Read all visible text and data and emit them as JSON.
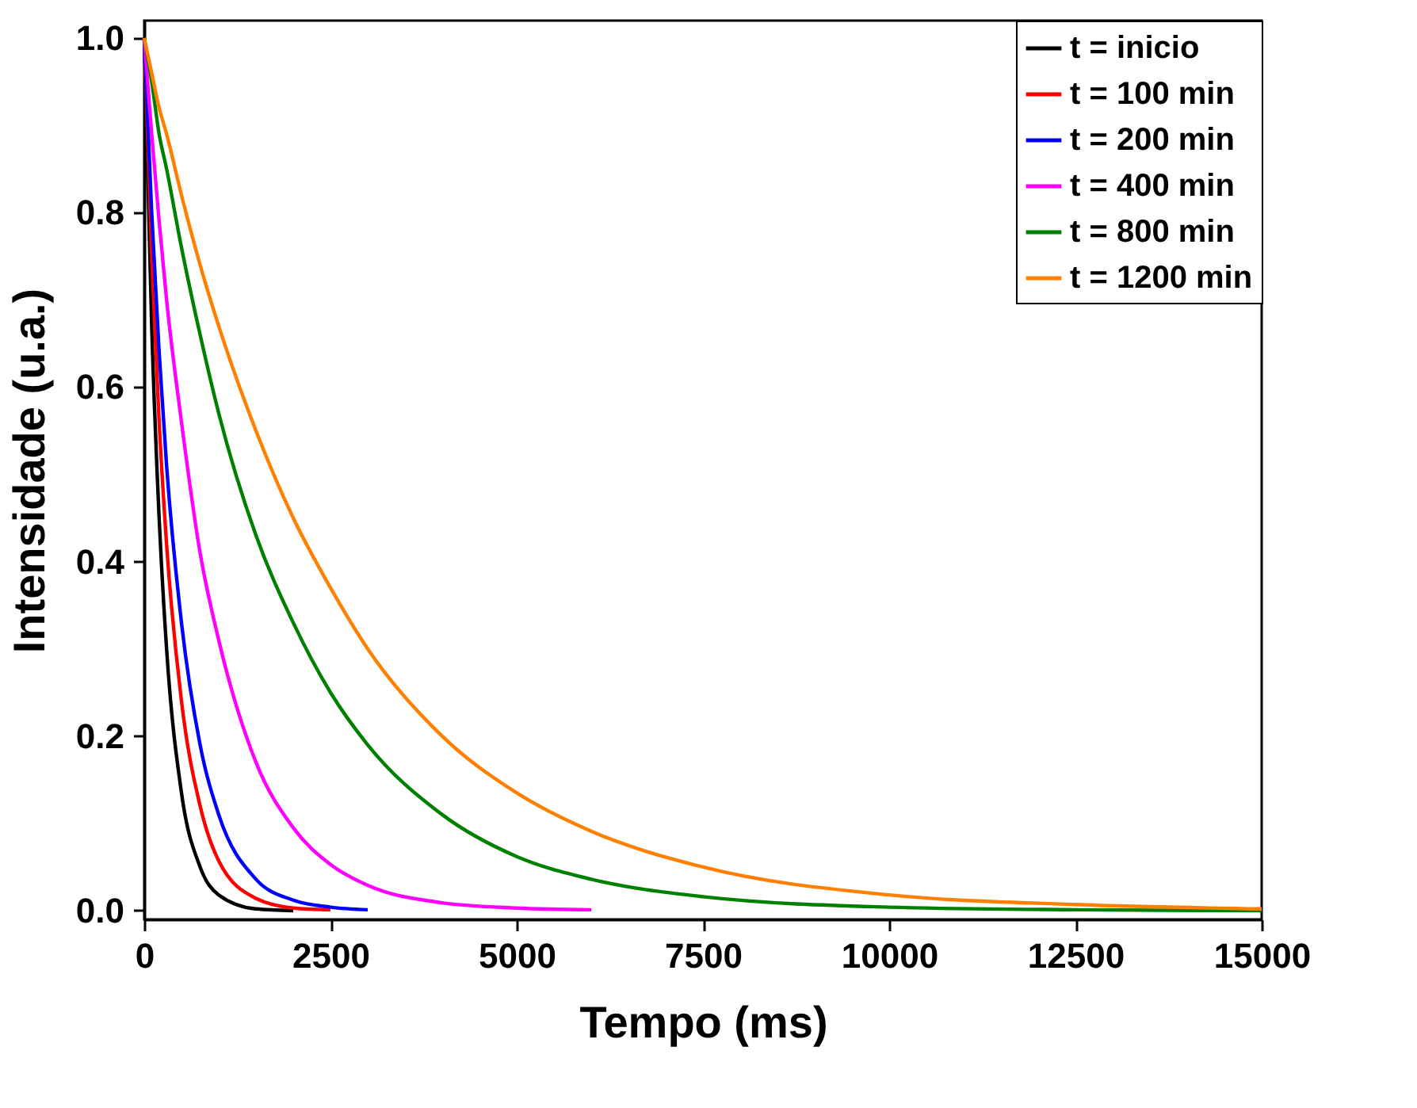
{
  "chart_data": {
    "type": "line",
    "xlabel": "Tempo (ms)",
    "ylabel": "Intensidade (u.a.)",
    "xlim": [
      0,
      15000
    ],
    "xticks": [
      0,
      2500,
      5000,
      7500,
      10000,
      12500,
      15000
    ],
    "ylim": [
      -0.01,
      1.02
    ],
    "yticks": [
      {
        "value": 0,
        "label": "0.0"
      },
      0.2,
      0.4,
      0.6,
      0.8,
      {
        "value": 1,
        "label": "1.0"
      }
    ],
    "grid": false,
    "legend": "top right",
    "marker": "none",
    "line_style": "solid",
    "x": [
      0,
      100,
      200,
      300,
      500,
      750,
      1000,
      1500,
      2000,
      2500,
      3000,
      4000,
      5000,
      6000,
      7500,
      10000,
      12500,
      15000
    ],
    "series": [
      {
        "name": "t = inicio",
        "color": "#000000",
        "x": [
          0,
          100,
          200,
          300,
          500,
          750,
          1000,
          1500,
          2000
        ],
        "values": [
          1,
          0.67,
          0.45,
          0.3,
          0.135,
          0.05,
          0.018,
          0.002,
          0
        ]
      },
      {
        "name": "t = 100 min",
        "color": "#ff0000",
        "x": [
          0,
          100,
          200,
          300,
          500,
          750,
          1000,
          1500,
          2000,
          2500
        ],
        "values": [
          1,
          0.75,
          0.56,
          0.42,
          0.24,
          0.12,
          0.057,
          0.014,
          0.003,
          0.001
        ]
      },
      {
        "name": "t = 200 min",
        "color": "#0000ff",
        "x": [
          0,
          100,
          200,
          300,
          500,
          750,
          1000,
          1500,
          2000,
          2500,
          3000
        ],
        "values": [
          1,
          0.8,
          0.64,
          0.51,
          0.33,
          0.19,
          0.11,
          0.036,
          0.012,
          0.004,
          0.001
        ]
      },
      {
        "name": "t = 400 min",
        "color": "#ff00ff",
        "x": [
          0,
          100,
          200,
          300,
          500,
          750,
          1000,
          1500,
          2000,
          2500,
          3000,
          4000,
          5000,
          6000
        ],
        "values": [
          1,
          0.89,
          0.79,
          0.7,
          0.56,
          0.41,
          0.31,
          0.17,
          0.095,
          0.053,
          0.029,
          0.009,
          0.003,
          0.001
        ]
      },
      {
        "name": "t = 800 min",
        "color": "#008000",
        "values": [
          1,
          0.95,
          0.89,
          0.85,
          0.76,
          0.66,
          0.57,
          0.43,
          0.33,
          0.25,
          0.19,
          0.11,
          0.062,
          0.036,
          0.016,
          0.004,
          0.001,
          0
        ]
      },
      {
        "name": "t = 1200 min",
        "color": "#ff8000",
        "values": [
          1,
          0.96,
          0.92,
          0.89,
          0.82,
          0.74,
          0.67,
          0.55,
          0.45,
          0.37,
          0.3,
          0.2,
          0.135,
          0.091,
          0.05,
          0.018,
          0.007,
          0.002
        ]
      }
    ]
  }
}
